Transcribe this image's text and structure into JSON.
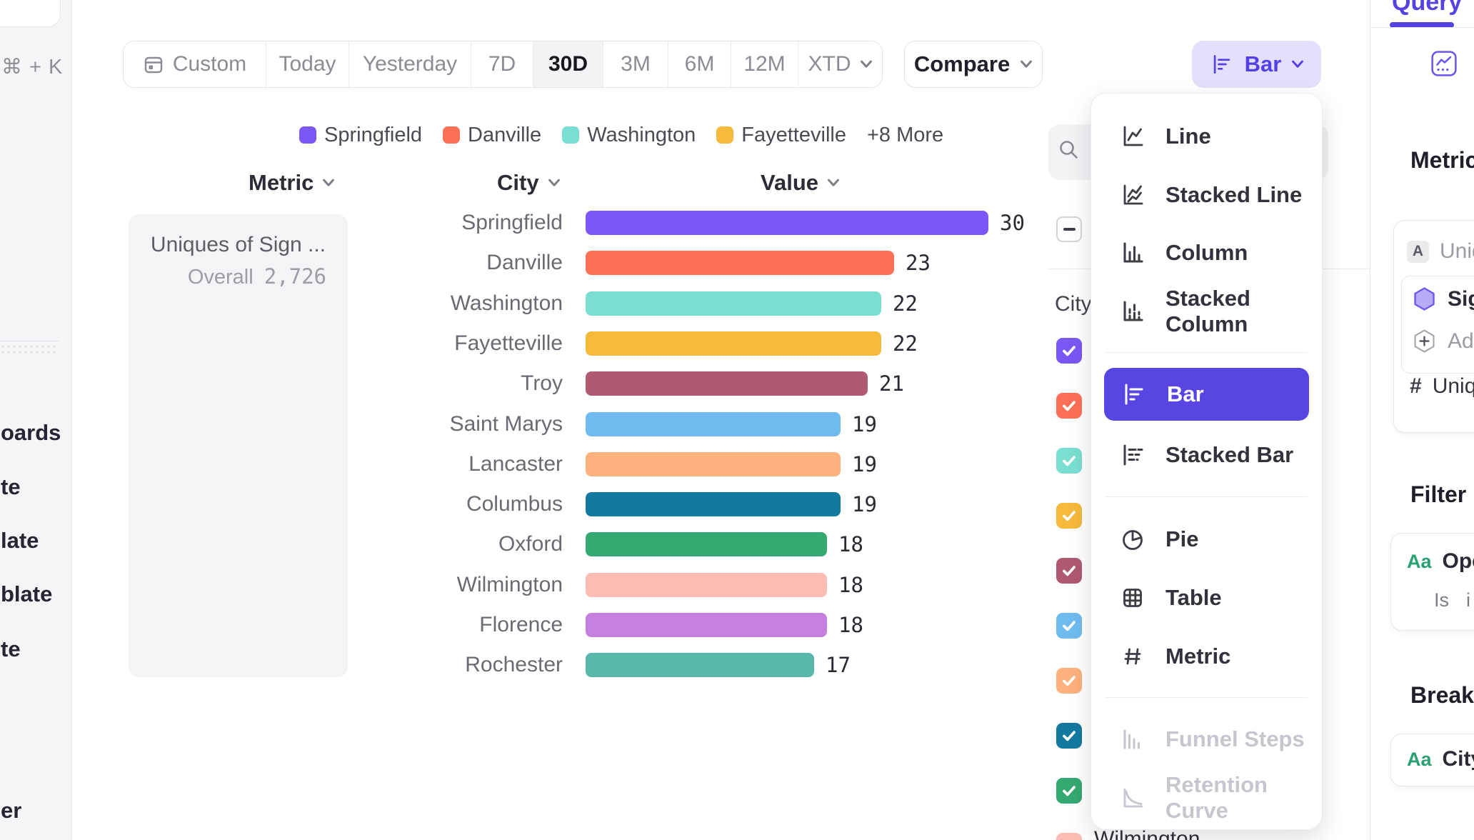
{
  "left_rail": {
    "shortcut_hint": "⌘ + K",
    "nav_fragments": [
      "oards",
      "te",
      "late",
      "blate",
      "te",
      "er"
    ]
  },
  "toolbar": {
    "date_tabs": [
      "Custom",
      "Today",
      "Yesterday",
      "7D",
      "30D",
      "3M",
      "6M",
      "12M",
      "XTD"
    ],
    "selected_tab": "30D",
    "compare_label": "Compare",
    "chart_type_button_label": "Bar"
  },
  "legend": {
    "items": [
      {
        "label": "Springfield",
        "color": "#7a58f5"
      },
      {
        "label": "Danville",
        "color": "#fd7058"
      },
      {
        "label": "Washington",
        "color": "#7adfd2"
      },
      {
        "label": "Fayetteville",
        "color": "#f5b93c"
      }
    ],
    "more_label": "+8 More"
  },
  "columns": {
    "metric": "Metric",
    "city": "City",
    "value": "Value"
  },
  "metric_card": {
    "title": "Uniques of Sign ...",
    "overall_label": "Overall",
    "overall_value": "2,726"
  },
  "chart_data": {
    "type": "bar",
    "orientation": "horizontal",
    "title": "Uniques of Sign ...",
    "overall": 2726,
    "categories": [
      "Springfield",
      "Danville",
      "Washington",
      "Fayetteville",
      "Troy",
      "Saint Marys",
      "Lancaster",
      "Columbus",
      "Oxford",
      "Wilmington",
      "Florence",
      "Rochester"
    ],
    "values": [
      30,
      23,
      22,
      22,
      21,
      19,
      19,
      19,
      18,
      18,
      18,
      17
    ],
    "colors": [
      "#7a58f5",
      "#fd7058",
      "#7adfd2",
      "#f5b93c",
      "#b05a72",
      "#6fbbf0",
      "#fdb17d",
      "#1479a0",
      "#36a871",
      "#fbbcb3",
      "#c77fdd",
      "#58b7ab"
    ],
    "xlim": [
      0,
      30
    ],
    "grid": false,
    "legend_position": "top"
  },
  "city_filter": {
    "header": "City",
    "select_all_state": "indeterminate",
    "checkbox_colors": [
      "#7a58f5",
      "#fd7058",
      "#7adfd2",
      "#f5b93c",
      "#b05a72",
      "#6fbbf0",
      "#fdb17d",
      "#1479a0",
      "#36a871",
      "#fbbcb3"
    ],
    "partial_row_label": "Wilmington"
  },
  "chart_type_menu": {
    "selected_color": "#5746e2",
    "items": [
      {
        "label": "Line",
        "icon": "line-chart-icon"
      },
      {
        "label": "Stacked Line",
        "icon": "stacked-line-icon"
      },
      {
        "label": "Column",
        "icon": "column-chart-icon"
      },
      {
        "label": "Stacked Column",
        "icon": "stacked-column-icon"
      },
      {
        "label": "Bar",
        "icon": "bar-chart-icon",
        "selected": true
      },
      {
        "label": "Stacked Bar",
        "icon": "stacked-bar-icon"
      },
      {
        "label": "Pie",
        "icon": "pie-chart-icon"
      },
      {
        "label": "Table",
        "icon": "table-icon"
      },
      {
        "label": "Metric",
        "icon": "metric-icon"
      },
      {
        "label": "Funnel Steps",
        "icon": "funnel-icon",
        "disabled": true
      },
      {
        "label": "Retention Curve",
        "icon": "retention-icon",
        "disabled": true
      }
    ]
  },
  "query_panel": {
    "tab_label": "Query",
    "metrics_heading": "Metrics",
    "event_badge": "A",
    "event_label": "Uniques",
    "signup_label": "Sign up",
    "add_label": "Add",
    "hash_symbol": "#",
    "measure_label": "Uniques",
    "filter_heading": "Filter",
    "filter_aa": "Aa",
    "filter_property": "Open",
    "filter_operator": "Is",
    "filter_value": "i",
    "breakdown_heading": "Breakdown",
    "breakdown_aa": "Aa",
    "breakdown_property": "City"
  }
}
